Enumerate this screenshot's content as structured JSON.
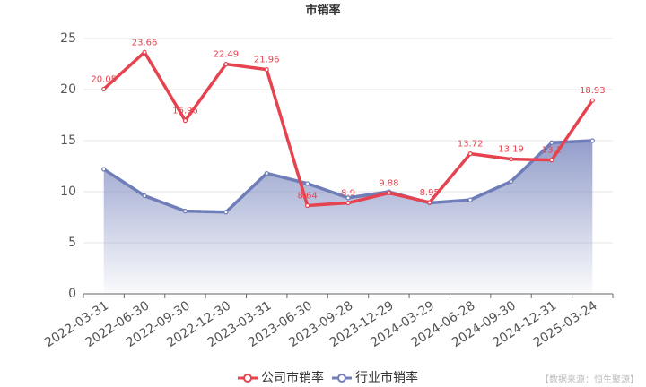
{
  "chart_data": {
    "type": "line",
    "title": "市销率",
    "categories": [
      "2022-03-31",
      "2022-06-30",
      "2022-09-30",
      "2022-12-30",
      "2023-03-31",
      "2023-06-30",
      "2023-09-28",
      "2023-12-29",
      "2024-03-29",
      "2024-06-28",
      "2024-09-30",
      "2024-12-31",
      "2025-03-24"
    ],
    "series": [
      {
        "name": "公司市销率",
        "color": "#e5434f",
        "values": [
          20.05,
          23.66,
          16.96,
          22.49,
          21.96,
          8.64,
          8.9,
          9.88,
          8.95,
          13.72,
          13.19,
          13.1,
          18.93
        ]
      },
      {
        "name": "行业市销率",
        "color": "#6f7db8",
        "area": true,
        "values": [
          12.2,
          9.6,
          8.1,
          8.0,
          11.8,
          10.8,
          9.4,
          10.0,
          8.9,
          9.2,
          11.0,
          14.8,
          15.0
        ]
      }
    ],
    "ylim": [
      0,
      25
    ],
    "yticks": [
      0,
      5,
      10,
      15,
      20,
      25
    ],
    "grid": true,
    "source": "【数据来源：恒生聚源】"
  }
}
